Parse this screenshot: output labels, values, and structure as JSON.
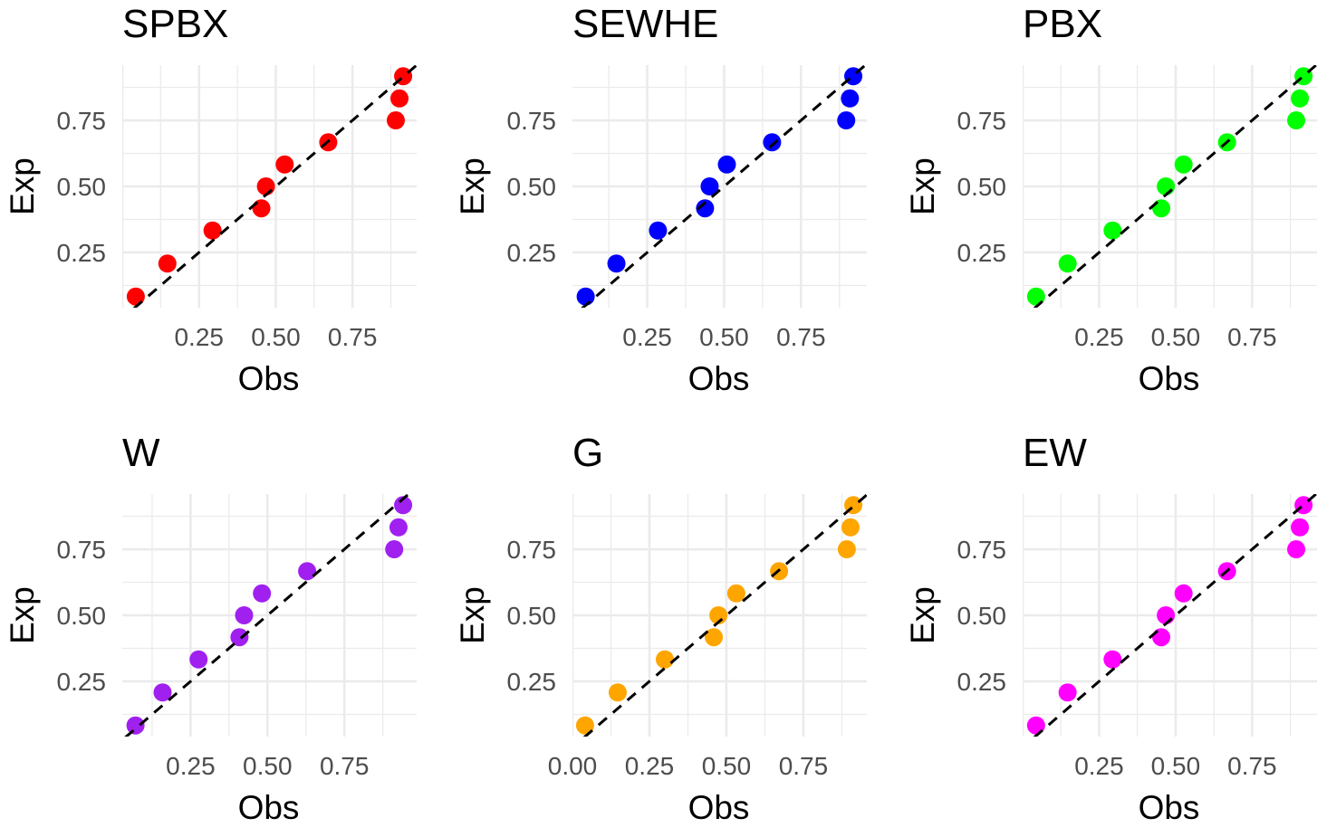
{
  "chart_data": [
    {
      "type": "scatter",
      "title": "SPBX",
      "xlabel": "Obs",
      "ylabel": "Exp",
      "color": "#ff0000",
      "xlim": [
        0.0,
        0.959
      ],
      "ylim": [
        0.041,
        0.959
      ],
      "xticks": [
        "0.25",
        "0.50",
        "0.75"
      ],
      "yticks": [
        "0.25",
        "0.50",
        "0.75"
      ],
      "reference_line": "y = x (dashed)",
      "grid": true,
      "x": [
        0.044,
        0.147,
        0.294,
        0.453,
        0.468,
        0.529,
        0.671,
        0.891,
        0.903,
        0.915
      ],
      "y": [
        0.083,
        0.208,
        0.333,
        0.417,
        0.5,
        0.583,
        0.667,
        0.75,
        0.833,
        0.917
      ]
    },
    {
      "type": "scatter",
      "title": "SEWHE",
      "xlabel": "Obs",
      "ylabel": "Exp",
      "color": "#0000ff",
      "xlim": [
        0.007,
        0.964
      ],
      "ylim": [
        0.041,
        0.959
      ],
      "xticks": [
        "0.25",
        "0.50",
        "0.75"
      ],
      "yticks": [
        "0.25",
        "0.50",
        "0.75"
      ],
      "reference_line": "y = x (dashed)",
      "grid": true,
      "x": [
        0.05,
        0.15,
        0.285,
        0.438,
        0.453,
        0.509,
        0.656,
        0.897,
        0.909,
        0.92
      ],
      "y": [
        0.083,
        0.208,
        0.333,
        0.417,
        0.5,
        0.583,
        0.667,
        0.75,
        0.833,
        0.917
      ]
    },
    {
      "type": "scatter",
      "title": "PBX",
      "xlabel": "Obs",
      "ylabel": "Exp",
      "color": "#00ff00",
      "xlim": [
        0.0,
        0.962
      ],
      "ylim": [
        0.041,
        0.959
      ],
      "xticks": [
        "0.25",
        "0.50",
        "0.75"
      ],
      "yticks": [
        "0.25",
        "0.50",
        "0.75"
      ],
      "reference_line": "y = x (dashed)",
      "grid": true,
      "x": [
        0.044,
        0.147,
        0.294,
        0.453,
        0.468,
        0.526,
        0.668,
        0.894,
        0.906,
        0.918
      ],
      "y": [
        0.083,
        0.208,
        0.333,
        0.417,
        0.5,
        0.583,
        0.667,
        0.75,
        0.833,
        0.917
      ]
    },
    {
      "type": "scatter",
      "title": "W",
      "xlabel": "Obs",
      "ylabel": "Exp",
      "color": "#a020f0",
      "xlim": [
        0.028,
        0.985
      ],
      "ylim": [
        0.041,
        0.959
      ],
      "xticks": [
        "0.25",
        "0.50",
        "0.75"
      ],
      "yticks": [
        "0.25",
        "0.50",
        "0.75"
      ],
      "reference_line": "y = x (dashed)",
      "grid": true,
      "x": [
        0.071,
        0.159,
        0.276,
        0.409,
        0.424,
        0.482,
        0.629,
        0.912,
        0.926,
        0.941
      ],
      "y": [
        0.083,
        0.208,
        0.333,
        0.417,
        0.5,
        0.583,
        0.667,
        0.75,
        0.833,
        0.917
      ]
    },
    {
      "type": "scatter",
      "title": "G",
      "xlabel": "Obs",
      "ylabel": "Exp",
      "color": "#ffa500",
      "xlim": [
        0.0,
        0.956
      ],
      "ylim": [
        0.041,
        0.959
      ],
      "xticks": [
        "0.00",
        "0.25",
        "0.50",
        "0.75"
      ],
      "yticks": [
        "0.25",
        "0.50",
        "0.75"
      ],
      "reference_line": "y = x (dashed)",
      "grid": true,
      "x": [
        0.041,
        0.147,
        0.3,
        0.459,
        0.474,
        0.532,
        0.671,
        0.891,
        0.903,
        0.912
      ],
      "y": [
        0.083,
        0.208,
        0.333,
        0.417,
        0.5,
        0.583,
        0.667,
        0.75,
        0.833,
        0.917
      ]
    },
    {
      "type": "scatter",
      "title": "EW",
      "xlabel": "Obs",
      "ylabel": "Exp",
      "color": "#ff00ff",
      "xlim": [
        0.0,
        0.962
      ],
      "ylim": [
        0.041,
        0.959
      ],
      "xticks": [
        "0.25",
        "0.50",
        "0.75"
      ],
      "yticks": [
        "0.25",
        "0.50",
        "0.75"
      ],
      "reference_line": "y = x (dashed)",
      "grid": true,
      "x": [
        0.044,
        0.147,
        0.294,
        0.453,
        0.468,
        0.526,
        0.668,
        0.894,
        0.906,
        0.918
      ],
      "y": [
        0.083,
        0.208,
        0.333,
        0.417,
        0.5,
        0.583,
        0.667,
        0.75,
        0.833,
        0.917
      ]
    }
  ]
}
